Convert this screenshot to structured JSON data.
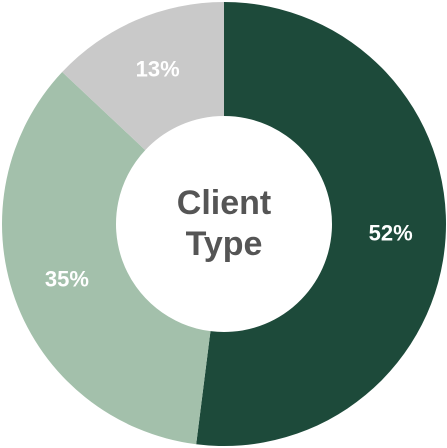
{
  "chart_data": {
    "type": "donut",
    "title": "Client Type",
    "values": [
      52,
      35,
      13
    ],
    "value_labels": [
      "52%",
      "35%",
      "13%"
    ],
    "colors": [
      "#1d4a3a",
      "#a3c0ab",
      "#c9c9c9"
    ]
  }
}
